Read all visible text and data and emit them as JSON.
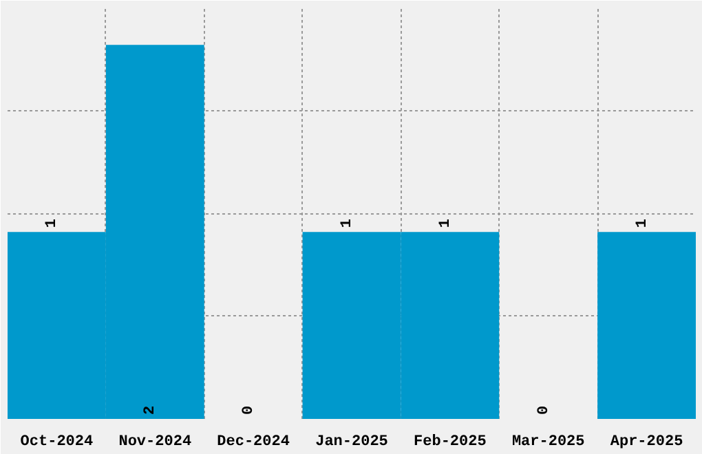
{
  "chart_data": {
    "type": "bar",
    "categories": [
      "Oct-2024",
      "Nov-2024",
      "Dec-2024",
      "Jan-2025",
      "Feb-2025",
      "Mar-2025",
      "Apr-2025"
    ],
    "values": [
      1,
      2,
      0,
      1,
      1,
      0,
      1
    ],
    "color": "#0099cc",
    "data_labels": true,
    "ylim": [
      0,
      2.2
    ],
    "tick_labels": "x",
    "grid": true
  }
}
